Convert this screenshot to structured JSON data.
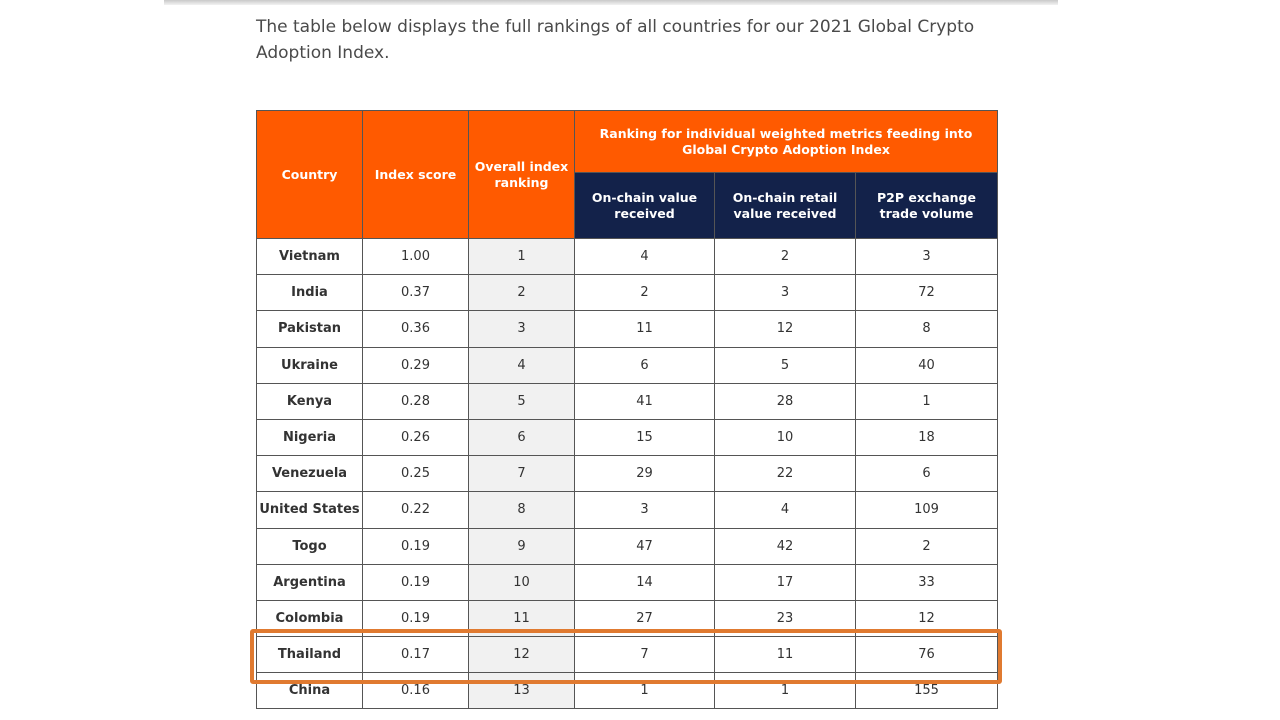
{
  "intro": "The table below displays the full rankings of all countries for our 2021 Global Crypto Adoption Index.",
  "table": {
    "headers": {
      "country": "Country",
      "index_score": "Index score",
      "overall_ranking": "Overall index ranking",
      "group": "Ranking for individual weighted metrics feeding into Global Crypto Adoption Index",
      "onchain_value": "On-chain value received",
      "onchain_retail": "On-chain retail value received",
      "p2p": "P2P exchange trade volume"
    },
    "rows": [
      [
        "Vietnam",
        "1.00",
        "1",
        "4",
        "2",
        "3"
      ],
      [
        "India",
        "0.37",
        "2",
        "2",
        "3",
        "72"
      ],
      [
        "Pakistan",
        "0.36",
        "3",
        "11",
        "12",
        "8"
      ],
      [
        "Ukraine",
        "0.29",
        "4",
        "6",
        "5",
        "40"
      ],
      [
        "Kenya",
        "0.28",
        "5",
        "41",
        "28",
        "1"
      ],
      [
        "Nigeria",
        "0.26",
        "6",
        "15",
        "10",
        "18"
      ],
      [
        "Venezuela",
        "0.25",
        "7",
        "29",
        "22",
        "6"
      ],
      [
        "United States",
        "0.22",
        "8",
        "3",
        "4",
        "109"
      ],
      [
        "Togo",
        "0.19",
        "9",
        "47",
        "42",
        "2"
      ],
      [
        "Argentina",
        "0.19",
        "10",
        "14",
        "17",
        "33"
      ],
      [
        "Colombia",
        "0.19",
        "11",
        "27",
        "23",
        "12"
      ],
      [
        "Thailand",
        "0.17",
        "12",
        "7",
        "11",
        "76"
      ],
      [
        "China",
        "0.16",
        "13",
        "1",
        "1",
        "155"
      ]
    ],
    "highlighted_row": "Thailand"
  },
  "colors": {
    "header_orange": "#ff5a00",
    "header_navy": "#13224a",
    "highlight": "#e07a30"
  }
}
